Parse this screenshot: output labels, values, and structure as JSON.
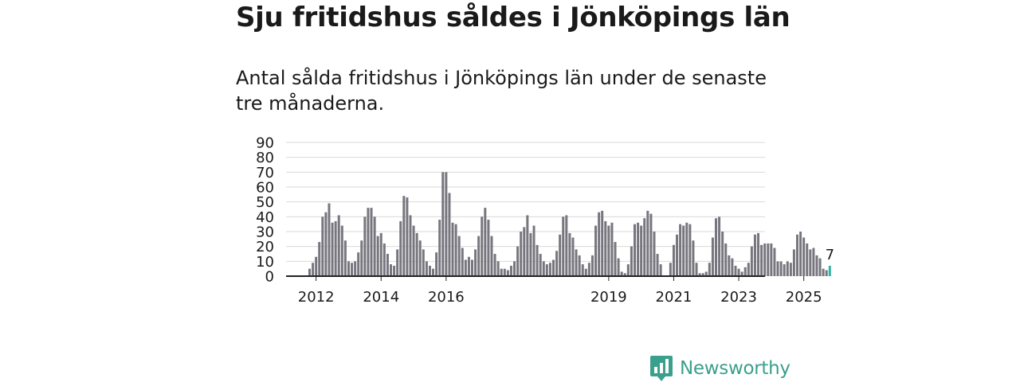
{
  "title": "Sju fritidshus såldes i Jönköpings län",
  "subtitle": "Antal sålda fritidshus i Jönköpings län under de senaste tre månaderna.",
  "brand": "Newsworthy",
  "colors": {
    "bar": "#77767e",
    "highlight": "#2bb5a4",
    "brand": "#3aa08c",
    "grid": "#d9d9d9"
  },
  "chart_data": {
    "type": "bar",
    "x_tick_labels": [
      "2012",
      "2014",
      "2016",
      "2019",
      "2021",
      "2023",
      "2025"
    ],
    "x_tick_positions": [
      2,
      22,
      42,
      92,
      112,
      132,
      152
    ],
    "y_ticks": [
      0,
      10,
      20,
      30,
      40,
      50,
      60,
      70,
      80,
      90
    ],
    "ylim": [
      0,
      90
    ],
    "grid": true,
    "last_value_label": "7",
    "values": [
      5,
      9,
      13,
      23,
      40,
      43,
      49,
      36,
      37,
      41,
      34,
      24,
      10,
      9,
      10,
      16,
      24,
      40,
      46,
      46,
      40,
      27,
      29,
      22,
      15,
      8,
      7,
      18,
      37,
      54,
      53,
      41,
      34,
      29,
      24,
      18,
      10,
      7,
      5,
      16,
      38,
      70,
      70,
      56,
      36,
      35,
      27,
      19,
      11,
      13,
      11,
      18,
      27,
      40,
      46,
      38,
      27,
      15,
      10,
      5,
      5,
      4,
      7,
      10,
      20,
      30,
      33,
      41,
      29,
      34,
      21,
      15,
      10,
      8,
      9,
      11,
      17,
      28,
      40,
      41,
      29,
      26,
      18,
      14,
      8,
      5,
      9,
      14,
      34,
      43,
      44,
      37,
      34,
      36,
      23,
      12,
      3,
      2,
      8,
      20,
      35,
      36,
      34,
      39,
      44,
      42,
      30,
      15,
      8,
      0,
      0,
      9,
      21,
      28,
      35,
      34,
      36,
      35,
      24,
      9,
      2,
      2,
      3,
      9,
      26,
      39,
      40,
      30,
      22,
      14,
      12,
      7,
      5,
      3,
      6,
      9,
      20,
      28,
      29,
      21,
      22,
      22,
      22,
      19,
      10,
      10,
      8,
      10,
      9,
      18,
      28,
      30,
      26,
      22,
      18,
      19,
      14,
      12,
      5,
      4,
      7
    ]
  }
}
